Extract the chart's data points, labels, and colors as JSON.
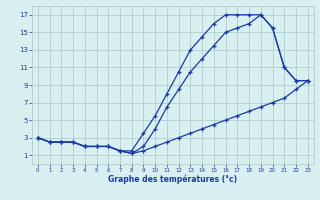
{
  "line1_x": [
    0,
    1,
    2,
    3,
    4,
    5,
    6,
    7,
    8,
    9,
    10,
    11,
    12,
    13,
    14,
    15,
    16,
    17,
    18,
    19,
    20,
    21,
    22,
    23
  ],
  "line1_y": [
    3,
    2.5,
    2.5,
    2.5,
    2,
    2,
    2,
    1.5,
    1.5,
    3.5,
    5.5,
    8,
    10.5,
    13,
    14.5,
    16,
    17,
    17,
    17,
    17,
    15.5,
    11,
    9.5,
    9.5
  ],
  "line2_x": [
    0,
    1,
    2,
    3,
    4,
    5,
    6,
    7,
    8,
    9,
    10,
    11,
    12,
    13,
    14,
    15,
    16,
    17,
    18,
    19,
    20,
    21,
    22,
    23
  ],
  "line2_y": [
    3,
    2.5,
    2.5,
    2.5,
    2,
    2,
    2,
    1.5,
    1.2,
    2.0,
    4.0,
    6.5,
    8.5,
    10.5,
    12,
    13.5,
    15,
    15.5,
    16,
    17,
    15.5,
    11,
    9.5,
    9.5
  ],
  "line3_x": [
    0,
    1,
    2,
    3,
    4,
    5,
    6,
    7,
    8,
    9,
    10,
    11,
    12,
    13,
    14,
    15,
    16,
    17,
    18,
    19,
    20,
    21,
    22,
    23
  ],
  "line3_y": [
    3,
    2.5,
    2.5,
    2.5,
    2,
    2,
    2,
    1.5,
    1.2,
    1.5,
    2.0,
    2.5,
    3.0,
    3.5,
    4.0,
    4.5,
    5.0,
    5.5,
    6.0,
    6.5,
    7.0,
    7.5,
    8.5,
    9.5
  ],
  "line_color": "#1a3aaa",
  "bg_color": "#d8f0f0",
  "grid_color": "#b0cece",
  "text_color": "#1a3aaa",
  "xlabel": "Graphe des températures (°c)",
  "xlim": [
    -0.5,
    23.5
  ],
  "ylim": [
    0,
    18
  ],
  "xticks": [
    0,
    1,
    2,
    3,
    4,
    5,
    6,
    7,
    8,
    9,
    10,
    11,
    12,
    13,
    14,
    15,
    16,
    17,
    18,
    19,
    20,
    21,
    22,
    23
  ],
  "yticks": [
    1,
    3,
    5,
    7,
    9,
    11,
    13,
    15,
    17
  ],
  "marker": "+"
}
